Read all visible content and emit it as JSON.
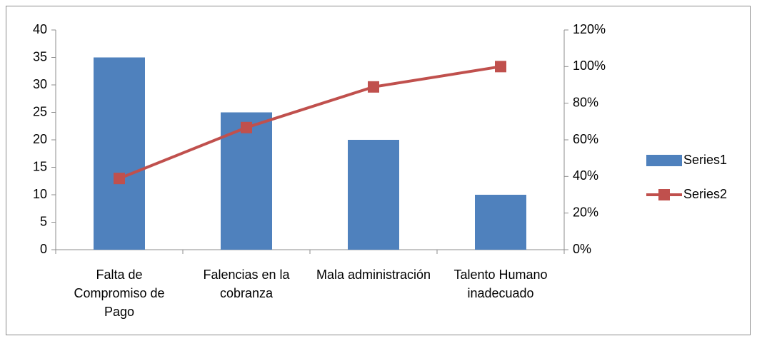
{
  "chart_data": {
    "type": "bar",
    "categories": [
      "Falta de Compromiso de Pago",
      "Falencias en la cobranza",
      "Mala administración",
      "Talento Humano inadecuado"
    ],
    "series": [
      {
        "name": "Series1",
        "color": "#4f81bd",
        "type": "bar",
        "axis": "y",
        "values": [
          35,
          25,
          20,
          10
        ]
      },
      {
        "name": "Series2",
        "color": "#c0504d",
        "type": "line",
        "axis": "y2",
        "values": [
          38.9,
          66.7,
          88.9,
          100
        ]
      }
    ],
    "ylim": [
      0,
      40
    ],
    "yticks": [
      0,
      5,
      10,
      15,
      20,
      25,
      30,
      35,
      40
    ],
    "y2lim": [
      0,
      120
    ],
    "y2ticks": [
      {
        "value": 0,
        "label": "0%"
      },
      {
        "value": 20,
        "label": "20%"
      },
      {
        "value": 40,
        "label": "40%"
      },
      {
        "value": 60,
        "label": "60%"
      },
      {
        "value": 80,
        "label": "80%"
      },
      {
        "value": 100,
        "label": "100%"
      },
      {
        "value": 120,
        "label": "120%"
      }
    ],
    "grid": false,
    "legend": "right"
  }
}
